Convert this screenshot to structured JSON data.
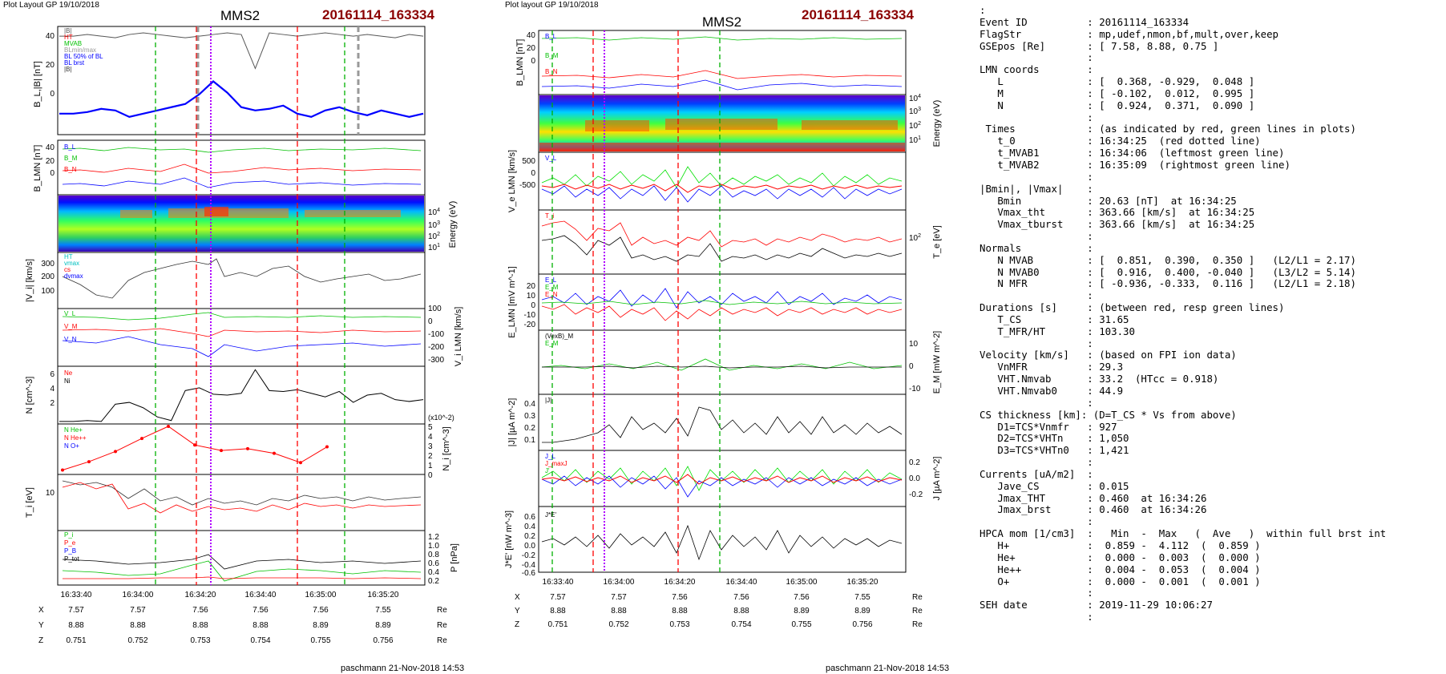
{
  "left": {
    "layout_label": "Plot Layout GP 19/10/2018",
    "spacecraft": "MMS2",
    "event": "20161114_163334",
    "footer": "paschmann 21-Nov-2018 14:53",
    "panel_labels": {
      "bl": "B_L,|B| [nT]",
      "blmn": "B_LMN [nT]",
      "energy": "Energy (eV)",
      "vi": "|V_i| [km/s]",
      "vlmn": "V_i LMN [km/s]",
      "n": "N [cm^-3]",
      "ni": "N_i [cm^-3]",
      "ti": "T_i [eV]",
      "p": "P [nPa]",
      "x10": "(x10^-2)"
    },
    "legends": {
      "bl": [
        "|B|",
        "HT",
        "MVAB",
        "BLmin/max",
        "BL 50% of BL",
        "BL brst",
        "|B|"
      ],
      "blmn": [
        "B_L",
        "B_M",
        "B_N"
      ],
      "vi": [
        "HT",
        "vmax",
        "cs",
        "dvmax"
      ],
      "vlmn": [
        "V_L",
        "V_M",
        "V_N"
      ],
      "n": [
        "Ne",
        "Ni"
      ],
      "hpca": [
        "N He+",
        "N He++",
        "N O+"
      ],
      "p": [
        "P_i",
        "P_e",
        "P_B",
        "P_tot"
      ]
    }
  },
  "mid": {
    "layout_label": "Plot layout GP 19/10/2018",
    "spacecraft": "MMS2",
    "event": "20161114_163334",
    "footer": "paschmann 21-Nov-2018 14:53",
    "panel_labels": {
      "blmn": "B_LMN [nT]",
      "energy": "Energy (eV)",
      "ve": "V_e LMN [km/s]",
      "te": "T_e [eV]",
      "elmn": "E_LMN [mV m^-1]",
      "em": "E_M [mW m^-2]",
      "j": "|J| [µA m^-2]",
      "jlmn": "J [µA m^-2]",
      "je": "J*E' [nW m^-3]"
    },
    "legends": {
      "blmn": [
        "B_L",
        "B_M",
        "B_N"
      ],
      "ve": [
        "V_L"
      ],
      "te": [
        "T_i"
      ],
      "elmn": [
        "E_L",
        "E_M",
        "E_N"
      ],
      "em": [
        "(VexB)_M",
        "E_M"
      ],
      "j": [
        "|J|"
      ],
      "jlmn": [
        "J_L",
        "J_maxJ",
        "J'"
      ],
      "je": [
        "J*E'"
      ]
    }
  },
  "time_ticks": [
    "16:33:40",
    "16:34:00",
    "16:34:20",
    "16:34:40",
    "16:35:00",
    "16:35:20"
  ],
  "ephemeris": {
    "labels": [
      "X",
      "Y",
      "Z"
    ],
    "unit": "Re",
    "X": [
      "7.57",
      "7.57",
      "7.56",
      "7.56",
      "7.56",
      "7.55"
    ],
    "Y": [
      "8.88",
      "8.88",
      "8.88",
      "8.88",
      "8.89",
      "8.89"
    ],
    "Z": [
      "0.751",
      "0.752",
      "0.753",
      "0.754",
      "0.755",
      "0.756"
    ]
  },
  "colors": {
    "event_red": "#8b0000",
    "bl_blue": "#0000ff",
    "b_green": "#00c000",
    "b_red": "#ff0000",
    "marker_magenta": "#b000ff",
    "marker_red": "#ff0000",
    "marker_green": "#00b000"
  },
  "info_panel": [
    ":",
    "Event ID          : 20161114_163334",
    "FlagStr           : mp,udef,nmon,bf,mult,over,keep",
    "GSEpos [Re]       : [ 7.58, 8.88, 0.75 ]",
    "                  :",
    "LMN coords        :",
    "   L              : [  0.368, -0.929,  0.048 ]",
    "   M              : [ -0.102,  0.012,  0.995 ]",
    "   N              : [  0.924,  0.371,  0.090 ]",
    "                  :",
    " Times            : (as indicated by red, green lines in plots)",
    "   t_0            : 16:34:25  (red dotted line)",
    "   t_MVAB1        : 16:34:06  (leftmost green line)",
    "   t_MVAB2        : 16:35:09  (rightmost green line)",
    "                  :",
    "|Bmin|, |Vmax|    :",
    "   Bmin           : 20.63 [nT]  at 16:34:25",
    "   Vmax_tht       : 363.66 [km/s]  at 16:34:25",
    "   Vmax_tburst    : 363.66 [km/s]  at 16:34:25",
    "                  :",
    "Normals           :",
    "   N MVAB         : [  0.851,  0.390,  0.350 ]   (L2/L1 = 2.17)",
    "   N MVAB0        : [  0.916,  0.400, -0.040 ]   (L3/L2 = 5.14)",
    "   N MFR          : [ -0.936, -0.333,  0.116 ]   (L2/L1 = 2.18)",
    "                  :",
    "Durations [s]     : (between red, resp green lines)",
    "   T_CS           : 31.65",
    "   T_MFR/HT       : 103.30",
    "                  :",
    "Velocity [km/s]   : (based on FPI ion data)",
    "   VnMFR          : 29.3",
    "   VHT.Nmvab      : 33.2  (HTcc = 0.918)",
    "   VHT.Nmvab0     : 44.9",
    "                  :",
    "CS thickness [km]: (D=T_CS * Vs from above)",
    "   D1=TCS*Vnmfr   : 927",
    "   D2=TCS*VHTn    : 1,050",
    "   D3=TCS*VHTn0   : 1,421",
    "                  :",
    "Currents [uA/m2]  :",
    "   Jave_CS        : 0.015",
    "   Jmax_THT       : 0.460  at 16:34:26",
    "   Jmax_brst      : 0.460  at 16:34:26",
    "                  :",
    "HPCA mom [1/cm3]  :   Min  -  Max   (  Ave   )  within full brst int",
    "   H+             :  0.859 -  4.112  (  0.859 )",
    "   He+            :  0.000 -  0.003  (  0.000 )",
    "   He++           :  0.004 -  0.053  (  0.004 )",
    "   O+             :  0.000 -  0.001  (  0.001 )",
    "                  :",
    "SEH date          : 2019-11-29 10:06:27",
    "                  :"
  ],
  "chart_data": [
    {
      "type": "line",
      "panel": "left B_L,|B|",
      "ylim": [
        -20,
        45
      ],
      "yticks": [
        0,
        20,
        40
      ],
      "ylabel": "B_L,|B| [nT]",
      "series": [
        {
          "name": "|B|",
          "color": "#555555",
          "values": [
            40,
            40,
            41,
            40,
            39,
            41,
            42,
            41,
            40,
            39,
            40,
            41,
            42,
            41,
            20,
            42,
            41,
            40,
            41,
            42,
            41,
            40,
            41,
            40,
            39,
            41,
            40
          ]
        },
        {
          "name": "B_L",
          "color": "#0000ff",
          "values": [
            -8,
            -8,
            -7,
            -5,
            -6,
            -10,
            -8,
            -6,
            -4,
            -2,
            4,
            12,
            5,
            -4,
            -6,
            -5,
            -3,
            -8,
            -10,
            -6,
            -4,
            -7,
            -9,
            -6,
            -8,
            -10,
            -8
          ]
        }
      ]
    },
    {
      "type": "line",
      "panel": "left N",
      "ylim": [
        1,
        7
      ],
      "yticks": [
        2,
        4,
        6
      ],
      "ylabel": "N [cm^-3]",
      "series": [
        {
          "name": "Ni",
          "color": "#000000",
          "values": [
            1.1,
            1.1,
            1.2,
            1.1,
            3.0,
            3.2,
            2.6,
            1.6,
            1.2,
            4.5,
            4.8,
            4.1,
            4.0,
            4.2,
            6.8,
            4.5,
            4.4,
            4.6,
            4.2,
            3.8,
            4.4,
            3.2,
            4.0,
            4.2,
            3.5,
            3.3,
            3.5
          ]
        }
      ]
    },
    {
      "type": "line",
      "panel": "left N_i HPCA",
      "ylim": [
        0,
        5
      ],
      "yticks": [
        0,
        1,
        2,
        3,
        4,
        5
      ],
      "ylabel": "N_i [cm^-3]",
      "series": [
        {
          "name": "N He++",
          "color": "#ff0000",
          "x": [
            "16:33:40",
            "16:33:50",
            "16:34:00",
            "16:34:10",
            "16:34:20",
            "16:34:30",
            "16:34:40",
            "16:34:50",
            "16:35:00",
            "16:35:10",
            "16:35:20"
          ],
          "values": [
            0.3,
            1.2,
            2.3,
            3.7,
            5.0,
            3.0,
            2.4,
            2.6,
            2.1,
            1.1,
            2.8
          ]
        }
      ]
    }
  ]
}
